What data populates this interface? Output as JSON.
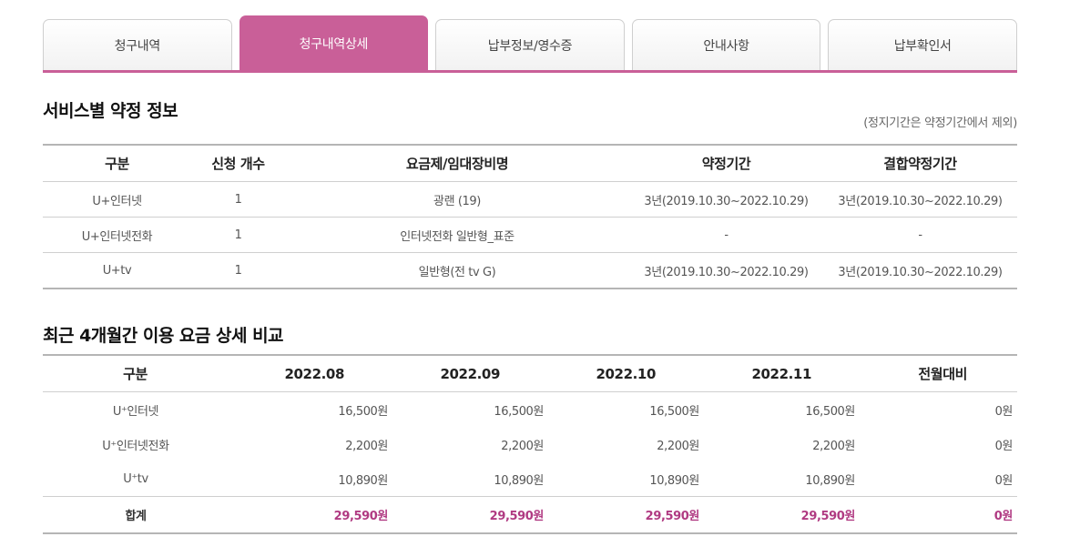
{
  "tabs": [
    {
      "label": "청구내역"
    },
    {
      "label": "청구내역상세"
    },
    {
      "label": "납부정보/영수증"
    },
    {
      "label": "안내사항"
    },
    {
      "label": "납부확인서"
    }
  ],
  "active_tab": "청구내역상세",
  "colors": {
    "accent": "#c95f98",
    "total_amount": "#b03a82"
  },
  "contract": {
    "title": "서비스별 약정 정보",
    "note": "(정지기간은 약정기간에서 제외)",
    "headers": [
      "구분",
      "신청 개수",
      "요금제/임대장비명",
      "약정기간",
      "결합약정기간"
    ],
    "rows": [
      [
        "U+인터넷",
        "1",
        "광랜 (19)",
        "3년(2019.10.30~2022.10.29)",
        "3년(2019.10.30~2022.10.29)"
      ],
      [
        "U+인터넷전화",
        "1",
        "인터넷전화 일반형_표준",
        "-",
        "-"
      ],
      [
        "U+tv",
        "1",
        "일반형(전 tv G)",
        "3년(2019.10.30~2022.10.29)",
        "3년(2019.10.30~2022.10.29)"
      ]
    ]
  },
  "usage": {
    "title": "최근 4개월간 이용 요금 상세 비교",
    "headers": [
      "구분",
      "2022.08",
      "2022.09",
      "2022.10",
      "2022.11",
      "전월대비"
    ],
    "rows": [
      [
        "U⁺인터넷",
        "16,500원",
        "16,500원",
        "16,500원",
        "16,500원",
        "0원"
      ],
      [
        "U⁺인터넷전화",
        "2,200원",
        "2,200원",
        "2,200원",
        "2,200원",
        "0원"
      ],
      [
        "U⁺tv",
        "10,890원",
        "10,890원",
        "10,890원",
        "10,890원",
        "0원"
      ]
    ],
    "total": [
      "합계",
      "29,590원",
      "29,590원",
      "29,590원",
      "29,590원",
      "0원"
    ]
  }
}
